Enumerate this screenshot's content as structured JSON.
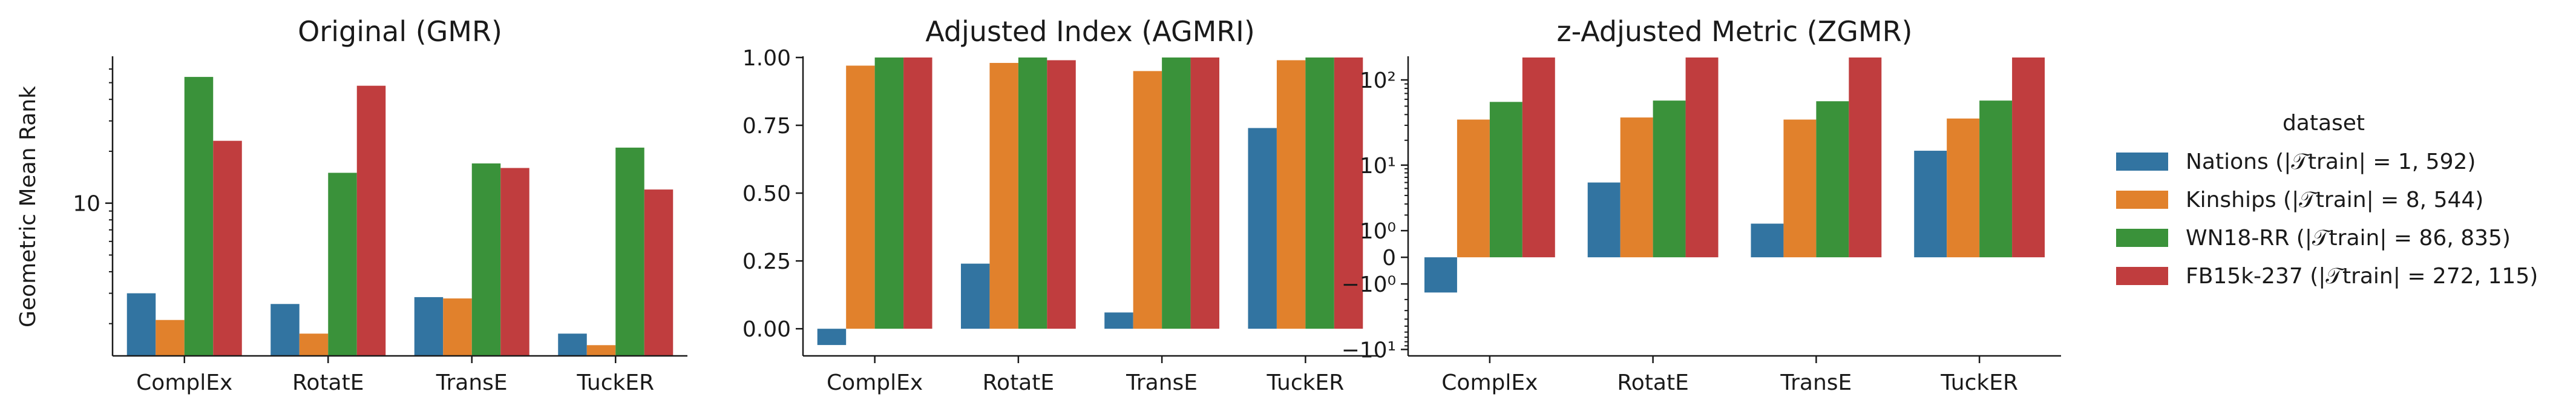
{
  "legend": {
    "title": "dataset",
    "entries": [
      {
        "name": "Nations (|𝒯train| = 1, 592)",
        "color": "#3274a1"
      },
      {
        "name": "Kinships (|𝒯train| = 8, 544)",
        "color": "#e1812c"
      },
      {
        "name": "WN18-RR (|𝒯train| = 86, 835)",
        "color": "#3a923a"
      },
      {
        "name": "FB15k-237 (|𝒯train| = 272, 115)",
        "color": "#c03d3e"
      }
    ]
  },
  "chart_data": [
    {
      "type": "bar",
      "title": "Original (GMR)",
      "xlabel": "",
      "ylabel": "Geometric Mean Rank",
      "yscale": "log",
      "ylim": [
        1.3,
        70
      ],
      "yticks": [
        {
          "value": 10,
          "label": "10"
        }
      ],
      "categories": [
        "ComplEx",
        "RotatE",
        "TransE",
        "TuckER"
      ],
      "series": [
        {
          "name": "Nations (|𝒯train| = 1, 592)",
          "values": [
            3.0,
            2.6,
            2.85,
            1.75
          ]
        },
        {
          "name": "Kinships (|𝒯train| = 8, 544)",
          "values": [
            2.1,
            1.75,
            2.8,
            1.5
          ]
        },
        {
          "name": "WN18-RR (|𝒯train| = 86, 835)",
          "values": [
            54,
            15,
            17,
            21
          ]
        },
        {
          "name": "FB15k-237 (|𝒯train| = 272, 115)",
          "values": [
            23,
            48,
            16,
            12
          ]
        }
      ]
    },
    {
      "type": "bar",
      "title": "Adjusted Index (AGMRI)",
      "xlabel": "",
      "ylabel": "",
      "yscale": "linear",
      "ylim": [
        -0.1,
        1.0
      ],
      "yticks": [
        {
          "value": 0.0,
          "label": "0.00"
        },
        {
          "value": 0.25,
          "label": "0.25"
        },
        {
          "value": 0.5,
          "label": "0.50"
        },
        {
          "value": 0.75,
          "label": "0.75"
        },
        {
          "value": 1.0,
          "label": "1.00"
        }
      ],
      "categories": [
        "ComplEx",
        "RotatE",
        "TransE",
        "TuckER"
      ],
      "series": [
        {
          "name": "Nations (|𝒯train| = 1, 592)",
          "values": [
            -0.06,
            0.24,
            0.06,
            0.74
          ]
        },
        {
          "name": "Kinships (|𝒯train| = 8, 544)",
          "values": [
            0.97,
            0.98,
            0.95,
            0.99
          ]
        },
        {
          "name": "WN18-RR (|𝒯train| = 86, 835)",
          "values": [
            1.0,
            1.0,
            1.0,
            1.0
          ]
        },
        {
          "name": "FB15k-237 (|𝒯train| = 272, 115)",
          "values": [
            1.0,
            0.99,
            1.0,
            1.0
          ]
        }
      ]
    },
    {
      "type": "bar",
      "title": "z-Adjusted Metric (ZGMR)",
      "xlabel": "",
      "ylabel": "",
      "yscale": "symlog",
      "ylim": [
        -12,
        180
      ],
      "yticks": [
        {
          "value": -10,
          "label": "−10¹"
        },
        {
          "value": -1,
          "label": "−10⁰"
        },
        {
          "value": 0,
          "label": "0"
        },
        {
          "value": 1,
          "label": "10⁰"
        },
        {
          "value": 10,
          "label": "10¹"
        },
        {
          "value": 100,
          "label": "10²"
        }
      ],
      "categories": [
        "ComplEx",
        "RotatE",
        "TransE",
        "TuckER"
      ],
      "series": [
        {
          "name": "Nations (|𝒯train| = 1, 592)",
          "values": [
            -1.5,
            6,
            1.4,
            15
          ]
        },
        {
          "name": "Kinships (|𝒯train| = 8, 544)",
          "values": [
            35,
            37,
            35,
            36
          ]
        },
        {
          "name": "WN18-RR (|𝒯train| = 86, 835)",
          "values": [
            56,
            58,
            57,
            58
          ]
        },
        {
          "name": "FB15k-237 (|𝒯train| = 272, 115)",
          "values": [
            180,
            180,
            180,
            180
          ]
        }
      ]
    }
  ]
}
